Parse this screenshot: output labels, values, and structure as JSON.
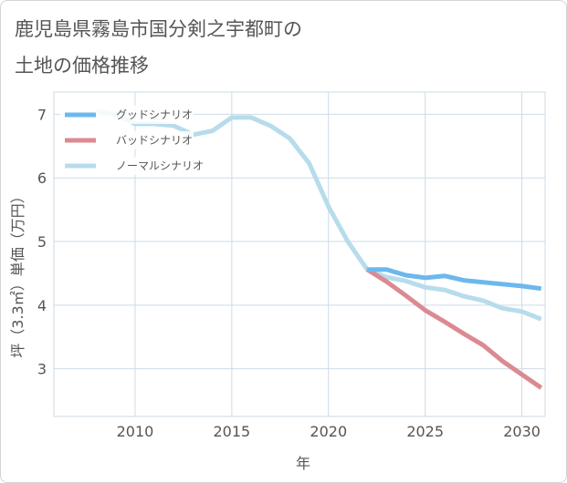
{
  "title_lines": [
    "鹿児島県霧島市国分剣之宇都町の",
    "土地の価格推移"
  ],
  "colors": {
    "good": "#6cb8ee",
    "bad": "#dc8a92",
    "normal": "#b7dcec",
    "grid": "#cddbe6",
    "axis_text": "#555555"
  },
  "chart_data": {
    "type": "line",
    "title": "鹿児島県霧島市国分剣之宇都町の土地の価格推移",
    "xlabel": "年",
    "ylabel": "坪（3.3㎡）単価（万円）",
    "xlim": [
      2005.8,
      2031.2
    ],
    "ylim": [
      2.25,
      7.35
    ],
    "xticks": [
      2010,
      2015,
      2020,
      2025,
      2030
    ],
    "yticks": [
      3,
      4,
      5,
      6,
      7
    ],
    "grid": true,
    "legend_position": "top-left",
    "series": [
      {
        "name": "グッドシナリオ",
        "color_key": "good",
        "x": [
          2022,
          2023,
          2024,
          2025,
          2026,
          2027,
          2028,
          2029,
          2030,
          2031
        ],
        "y": [
          4.56,
          4.56,
          4.47,
          4.43,
          4.46,
          4.39,
          4.36,
          4.33,
          4.3,
          4.26
        ]
      },
      {
        "name": "バッドシナリオ",
        "color_key": "bad",
        "x": [
          2022,
          2023,
          2024,
          2025,
          2026,
          2027,
          2028,
          2029,
          2030,
          2031
        ],
        "y": [
          4.56,
          4.37,
          4.15,
          3.92,
          3.74,
          3.55,
          3.37,
          3.12,
          2.91,
          2.7
        ]
      },
      {
        "name": "ノーマルシナリオ",
        "color_key": "normal",
        "x": [
          2008,
          2009,
          2010,
          2011,
          2012,
          2013,
          2014,
          2015,
          2016,
          2017,
          2018,
          2019,
          2020,
          2021,
          2022,
          2023,
          2024,
          2025,
          2026,
          2027,
          2028,
          2029,
          2030,
          2031
        ],
        "y": [
          7.05,
          7.0,
          6.85,
          6.85,
          6.82,
          6.68,
          6.74,
          6.95,
          6.95,
          6.82,
          6.62,
          6.23,
          5.55,
          5.0,
          4.56,
          4.44,
          4.38,
          4.28,
          4.24,
          4.14,
          4.07,
          3.95,
          3.9,
          3.78
        ]
      }
    ]
  }
}
